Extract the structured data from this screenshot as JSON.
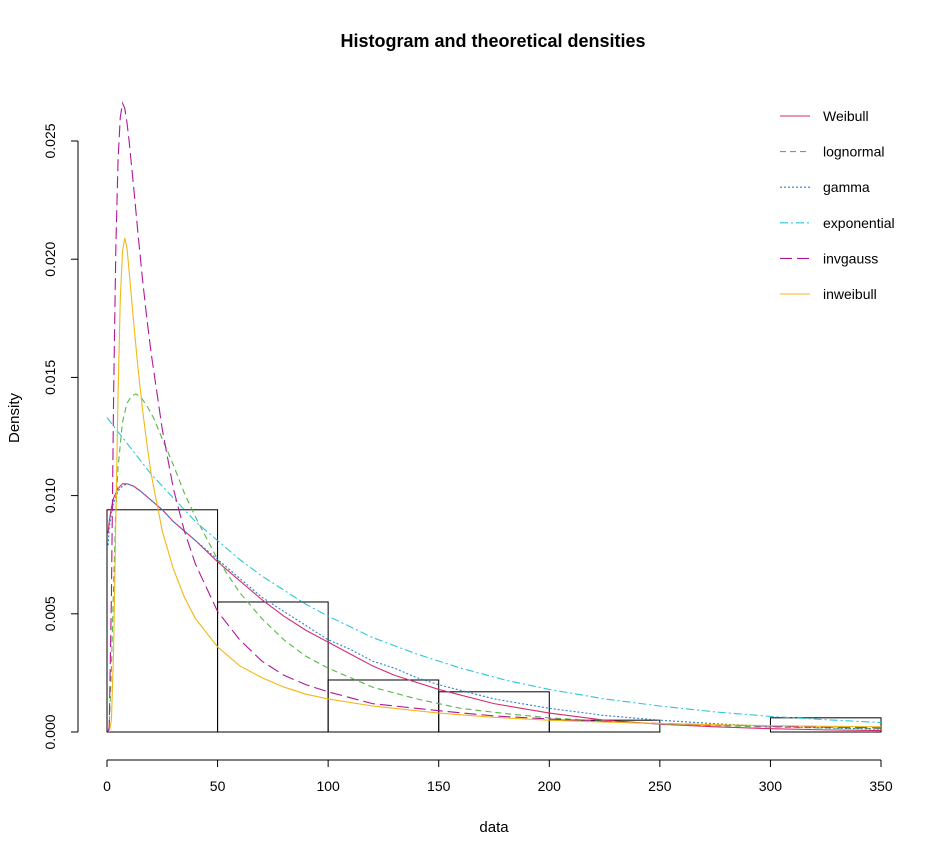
{
  "chart_data": {
    "type": "histogram",
    "title": "Histogram and theoretical densities",
    "xlabel": "data",
    "ylabel": "Density",
    "xlim": [
      0,
      350
    ],
    "ylim": [
      0,
      0.025
    ],
    "x_ticks": [
      0,
      50,
      100,
      150,
      200,
      250,
      300,
      350
    ],
    "x_tick_labels": [
      "0",
      "50",
      "100",
      "150",
      "200",
      "250",
      "300",
      "350"
    ],
    "y_ticks": [
      0,
      0.005,
      0.01,
      0.015,
      0.02,
      0.025
    ],
    "y_tick_labels": [
      "0.000",
      "0.005",
      "0.010",
      "0.015",
      "0.020",
      "0.025"
    ],
    "grid": false,
    "legend_position": "top-right",
    "bins": [
      {
        "x0": 0,
        "x1": 50,
        "density": 0.0094
      },
      {
        "x0": 50,
        "x1": 100,
        "density": 0.0055
      },
      {
        "x0": 100,
        "x1": 150,
        "density": 0.0022
      },
      {
        "x0": 150,
        "x1": 200,
        "density": 0.0017
      },
      {
        "x0": 200,
        "x1": 250,
        "density": 0.0005
      },
      {
        "x0": 250,
        "x1": 300,
        "density": 0.0
      },
      {
        "x0": 300,
        "x1": 350,
        "density": 0.0006
      }
    ],
    "series": [
      {
        "name": "Weibull",
        "color": "#D62D6C",
        "dash": "solid",
        "x": [
          0.5,
          1,
          2,
          3,
          5,
          7,
          9,
          12,
          15,
          20,
          25,
          30,
          40,
          50,
          60,
          70,
          80,
          90,
          100,
          110,
          120,
          130,
          140,
          150,
          175,
          200,
          225,
          250,
          275,
          300,
          325,
          350
        ],
        "y": [
          0.0084,
          0.0089,
          0.0095,
          0.0099,
          0.0103,
          0.0105,
          0.0105,
          0.0104,
          0.0102,
          0.0098,
          0.0094,
          0.0089,
          0.0081,
          0.0072,
          0.0064,
          0.0056,
          0.0049,
          0.0043,
          0.0038,
          0.0033,
          0.0028,
          0.0024,
          0.0021,
          0.0018,
          0.0012,
          0.0008,
          0.0005,
          0.00033,
          0.00022,
          0.00014,
          9e-05,
          6e-05
        ]
      },
      {
        "name": "lognormal",
        "color": "#55B845",
        "dash": "6,4",
        "x": [
          0.5,
          1,
          2,
          3,
          4,
          5,
          7,
          9,
          11,
          13,
          15,
          18,
          21,
          25,
          30,
          35,
          40,
          50,
          60,
          70,
          80,
          90,
          100,
          120,
          140,
          160,
          180,
          200,
          225,
          250,
          275,
          300,
          325,
          350
        ],
        "y": [
          0.0,
          0.0002,
          0.0027,
          0.0063,
          0.0094,
          0.0112,
          0.0131,
          0.0139,
          0.0142,
          0.0143,
          0.0142,
          0.0138,
          0.0133,
          0.0124,
          0.0113,
          0.0101,
          0.0091,
          0.0073,
          0.0059,
          0.0048,
          0.0039,
          0.0032,
          0.0027,
          0.0019,
          0.0014,
          0.001,
          0.00078,
          0.0006,
          0.00045,
          0.00034,
          0.00027,
          0.00021,
          0.00017,
          0.00014
        ]
      },
      {
        "name": "gamma",
        "color": "#2F7FD6",
        "dash": "2,2",
        "x": [
          0.5,
          1,
          2,
          3,
          5,
          7,
          9,
          12,
          15,
          20,
          25,
          30,
          40,
          50,
          60,
          70,
          80,
          90,
          100,
          110,
          120,
          130,
          140,
          150,
          175,
          200,
          225,
          250,
          275,
          300,
          325,
          350
        ],
        "y": [
          0.0079,
          0.0086,
          0.0093,
          0.0097,
          0.0102,
          0.0104,
          0.0105,
          0.0104,
          0.0102,
          0.0098,
          0.0094,
          0.0089,
          0.0081,
          0.0073,
          0.0065,
          0.0057,
          0.0051,
          0.0045,
          0.0039,
          0.0035,
          0.003,
          0.0027,
          0.0023,
          0.002,
          0.0014,
          0.001,
          0.0007,
          0.0005,
          0.00035,
          0.00024,
          0.00017,
          0.00012
        ]
      },
      {
        "name": "exponential",
        "color": "#2CC6D9",
        "dash": "8,3,2,3",
        "x": [
          0,
          10,
          20,
          30,
          40,
          50,
          60,
          70,
          80,
          90,
          100,
          120,
          140,
          160,
          180,
          200,
          225,
          250,
          275,
          300,
          325,
          350
        ],
        "y": [
          0.0133,
          0.0121,
          0.0109,
          0.0099,
          0.0089,
          0.0081,
          0.0073,
          0.0066,
          0.006,
          0.0054,
          0.0049,
          0.004,
          0.0033,
          0.0027,
          0.0022,
          0.0018,
          0.0014,
          0.0011,
          0.00085,
          0.00066,
          0.00052,
          0.0004
        ]
      },
      {
        "name": "invgauss",
        "color": "#B0189C",
        "dash": "12,5",
        "x": [
          0.5,
          1,
          2,
          3,
          4,
          5,
          6,
          7,
          8,
          9,
          10,
          12,
          14,
          16,
          18,
          20,
          25,
          30,
          35,
          40,
          50,
          60,
          70,
          80,
          90,
          100,
          120,
          150,
          175,
          200,
          225,
          250,
          275,
          300,
          325,
          350
        ],
        "y": [
          0.0,
          0.0002,
          0.0058,
          0.0143,
          0.0205,
          0.0242,
          0.026,
          0.0266,
          0.0264,
          0.0258,
          0.025,
          0.0231,
          0.0211,
          0.0192,
          0.0175,
          0.016,
          0.0128,
          0.0103,
          0.0085,
          0.0071,
          0.0051,
          0.0039,
          0.003,
          0.0024,
          0.002,
          0.0017,
          0.0012,
          0.0009,
          0.00068,
          0.00055,
          0.00044,
          0.00036,
          0.0003,
          0.00025,
          0.00021,
          0.00018
        ]
      },
      {
        "name": "inweibull",
        "color": "#F2B718",
        "dash": "solid",
        "x": [
          1,
          2,
          3,
          4,
          5,
          6,
          7,
          8,
          9,
          10,
          12,
          14,
          16,
          18,
          20,
          25,
          30,
          35,
          40,
          50,
          60,
          70,
          80,
          90,
          100,
          120,
          150,
          175,
          200,
          225,
          250,
          275,
          300,
          325,
          350
        ],
        "y": [
          0.0,
          0.0005,
          0.0035,
          0.009,
          0.0143,
          0.0183,
          0.0203,
          0.0209,
          0.0205,
          0.0195,
          0.0174,
          0.0154,
          0.0137,
          0.0122,
          0.0109,
          0.0085,
          0.0069,
          0.0057,
          0.0048,
          0.0036,
          0.0028,
          0.0023,
          0.0019,
          0.0016,
          0.0014,
          0.0011,
          0.0008,
          0.00062,
          0.0005,
          0.00042,
          0.00036,
          0.00031,
          0.00027,
          0.00024,
          0.00022
        ]
      }
    ]
  }
}
